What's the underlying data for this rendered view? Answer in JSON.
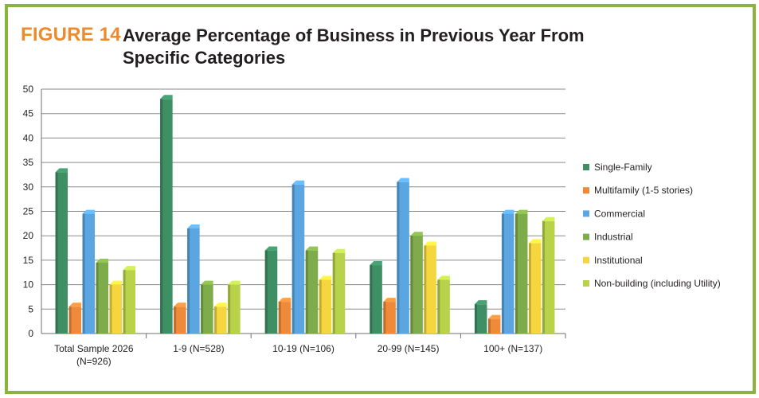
{
  "figure": {
    "label": "FIGURE 14",
    "title": "Average Percentage of Business in Previous Year From Specific Categories"
  },
  "chart_data": {
    "type": "bar",
    "title": "Average Percentage of Business in Previous Year From Specific Categories",
    "categories": [
      [
        "Total Sample 2026",
        "(N=926)"
      ],
      [
        "1-9 (N=528)"
      ],
      [
        "10-19 (N=106)"
      ],
      [
        "20-99 (N=145)"
      ],
      [
        "100+ (N=137)"
      ]
    ],
    "series": [
      {
        "name": "Single-Family",
        "color": "#3f8f65",
        "values": [
          33,
          48,
          17,
          14,
          6
        ]
      },
      {
        "name": "Multifamily (1-5 stories)",
        "color": "#ef8a3b",
        "values": [
          5.5,
          5.5,
          6.5,
          6.5,
          3
        ]
      },
      {
        "name": "Commercial",
        "color": "#5ba6e0",
        "values": [
          24.5,
          21.5,
          30.5,
          31,
          24.5
        ]
      },
      {
        "name": "Industrial",
        "color": "#7fac4a",
        "values": [
          14.5,
          10,
          17,
          20,
          24.5
        ]
      },
      {
        "name": "Institutional",
        "color": "#f5d63f",
        "values": [
          10,
          5.5,
          11,
          18,
          18.5
        ]
      },
      {
        "name": "Non-building (including Utility)",
        "color": "#b8d24a",
        "values": [
          13,
          10,
          16.5,
          11,
          23
        ]
      }
    ],
    "yticks": [
      0,
      5,
      10,
      15,
      20,
      25,
      30,
      35,
      40,
      45,
      50
    ],
    "ylim": [
      0,
      50
    ],
    "grid": true,
    "legend_position": "right",
    "xlabel": "",
    "ylabel": ""
  }
}
